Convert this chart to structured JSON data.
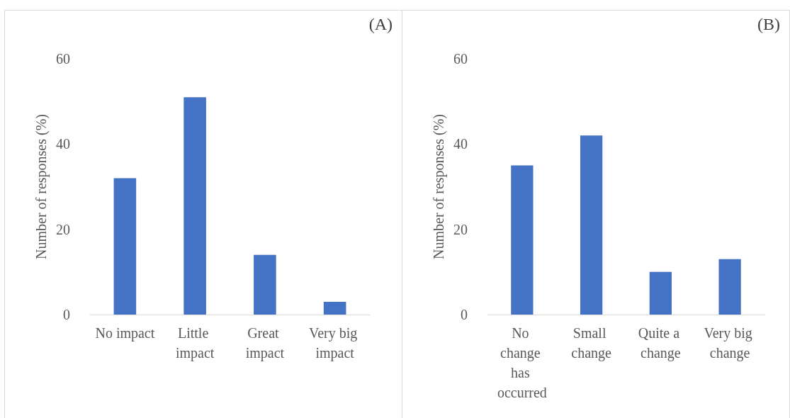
{
  "chart_data": [
    {
      "type": "bar",
      "title": "(A)",
      "ylabel": "Number of responses (%)",
      "categories": [
        "No impact",
        "Little impact",
        "Great impact",
        "Very big impact"
      ],
      "values": [
        32,
        51,
        14,
        3
      ],
      "color": "#4472c4",
      "ylim": [
        0,
        60
      ],
      "yticks": [
        0,
        20,
        40,
        60
      ],
      "grid": false
    },
    {
      "type": "bar",
      "title": "(B)",
      "ylabel": "Number of responses (%)",
      "categories": [
        "No change has occurred",
        "Small change",
        "Quite a change",
        "Very big change"
      ],
      "values": [
        35,
        42,
        10,
        13
      ],
      "color": "#4472c4",
      "ylim": [
        0,
        60
      ],
      "yticks": [
        0,
        20,
        40,
        60
      ],
      "grid": false
    }
  ]
}
